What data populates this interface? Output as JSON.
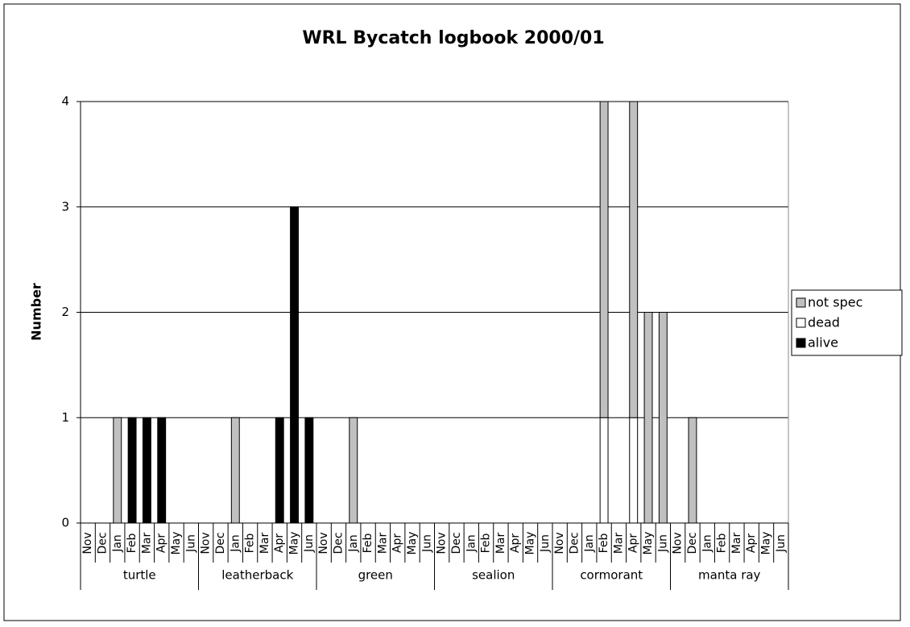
{
  "chart_data": {
    "type": "stacked-bar",
    "title": "WRL Bycatch logbook 2000/01",
    "ylabel": "Number",
    "categories": [
      "Nov",
      "Dec",
      "Jan",
      "Feb",
      "Mar",
      "Apr",
      "May",
      "Jun",
      "Nov",
      "Dec",
      "Jan",
      "Feb",
      "Mar",
      "Apr",
      "May",
      "Jun",
      "Nov",
      "Dec",
      "Jan",
      "Feb",
      "Mar",
      "Apr",
      "May",
      "Jun",
      "Nov",
      "Dec",
      "Jan",
      "Feb",
      "Mar",
      "Apr",
      "May",
      "Jun",
      "Nov",
      "Dec",
      "Jan",
      "Feb",
      "Mar",
      "Apr",
      "May",
      "Jun",
      "Nov",
      "Dec",
      "Jan",
      "Feb",
      "Mar",
      "Apr",
      "May",
      "Jun"
    ],
    "groups": [
      "turtle",
      "leatherback",
      "green",
      "sealion",
      "cormorant",
      "manta ray"
    ],
    "series": [
      {
        "name": "not spec",
        "color": "#c0c0c0",
        "values": [
          0,
          0,
          1,
          0,
          0,
          0,
          0,
          0,
          0,
          0,
          1,
          0,
          0,
          0,
          0,
          0,
          0,
          0,
          1,
          0,
          0,
          0,
          0,
          0,
          0,
          0,
          0,
          0,
          0,
          0,
          0,
          0,
          0,
          0,
          0,
          3,
          0,
          3,
          2,
          2,
          0,
          1,
          0,
          0,
          0,
          0,
          0,
          0
        ]
      },
      {
        "name": "dead",
        "color": "#ffffff",
        "values": [
          0,
          0,
          0,
          0,
          0,
          0,
          0,
          0,
          0,
          0,
          0,
          0,
          0,
          0,
          0,
          0,
          0,
          0,
          0,
          0,
          0,
          0,
          0,
          0,
          0,
          0,
          0,
          0,
          0,
          0,
          0,
          0,
          0,
          0,
          0,
          1,
          0,
          1,
          0,
          0,
          0,
          0,
          0,
          0,
          0,
          0,
          0,
          0
        ]
      },
      {
        "name": "alive",
        "color": "#000000",
        "values": [
          0,
          0,
          0,
          1,
          1,
          1,
          0,
          0,
          0,
          0,
          0,
          0,
          0,
          1,
          3,
          1,
          0,
          0,
          0,
          0,
          0,
          0,
          0,
          0,
          0,
          0,
          0,
          0,
          0,
          0,
          0,
          0,
          0,
          0,
          0,
          0,
          0,
          0,
          0,
          0,
          0,
          0,
          0,
          0,
          0,
          0,
          0,
          0
        ]
      }
    ],
    "ylim": [
      0,
      4
    ],
    "yticks": [
      0,
      1,
      2,
      3,
      4
    ],
    "grid": true,
    "legend": "right"
  }
}
